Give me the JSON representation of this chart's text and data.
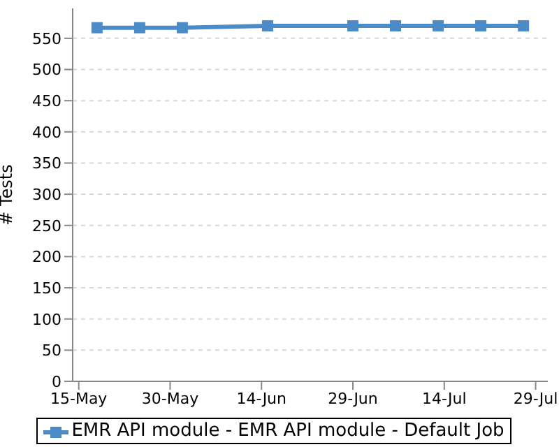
{
  "chart_data": {
    "type": "line",
    "ylabel": "# Tests",
    "x": [
      "--05-18",
      "--05-25",
      "--06-01",
      "--06-15",
      "--06-29",
      "--07-06",
      "--07-13",
      "--07-20",
      "--07-27"
    ],
    "series": [
      {
        "name": "EMR API module - EMR API module - Default Job",
        "color": "#4a8bc8",
        "values": [
          567,
          567,
          567,
          570,
          570,
          570,
          570,
          570,
          570
        ]
      }
    ],
    "xlim": [
      "--05-14",
      "--07-31"
    ],
    "xticks": [
      {
        "value": "--05-15",
        "label": "15-May"
      },
      {
        "value": "--05-30",
        "label": "30-May"
      },
      {
        "value": "--06-14",
        "label": "14-Jun"
      },
      {
        "value": "--06-29",
        "label": "29-Jun"
      },
      {
        "value": "--07-14",
        "label": "14-Jul"
      },
      {
        "value": "--07-29",
        "label": "29-Jul"
      }
    ],
    "ylim": [
      0,
      598
    ],
    "yticks": [
      0,
      50,
      100,
      150,
      200,
      250,
      300,
      350,
      400,
      450,
      500,
      550
    ],
    "grid": "y",
    "legend": "bottom",
    "marker": "square",
    "line_style": "solid"
  }
}
